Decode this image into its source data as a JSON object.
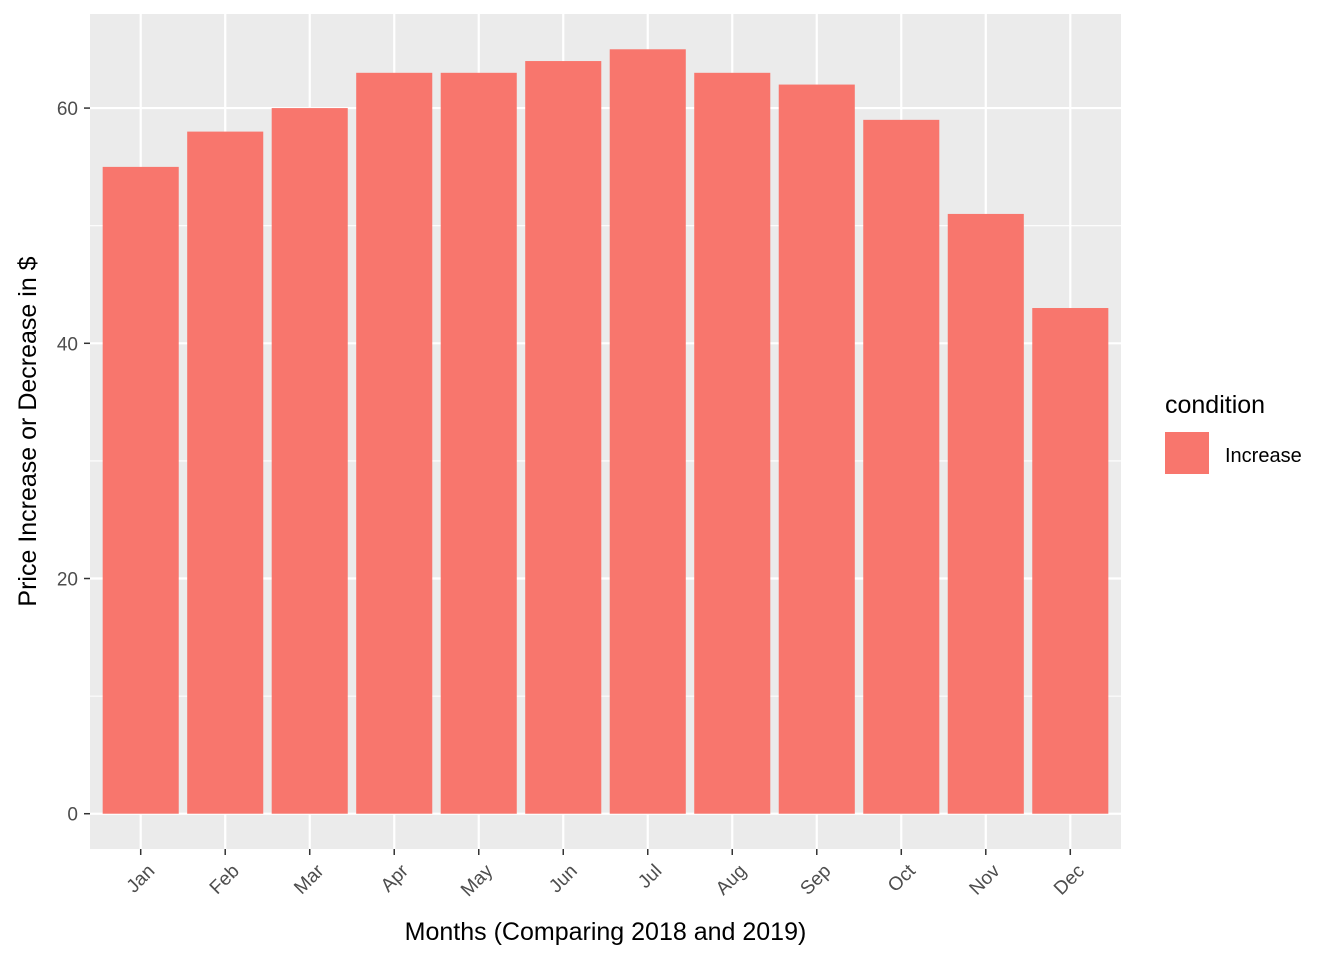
{
  "chart_data": {
    "type": "bar",
    "categories": [
      "Jan",
      "Feb",
      "Mar",
      "Apr",
      "May",
      "Jun",
      "Jul",
      "Aug",
      "Sep",
      "Oct",
      "Nov",
      "Dec"
    ],
    "series": [
      {
        "name": "Increase",
        "values": [
          55,
          58,
          60,
          63,
          63,
          64,
          65,
          63,
          62,
          59,
          51,
          43
        ],
        "color": "#F8766D"
      }
    ],
    "xlabel": "Months (Comparing 2018 and 2019)",
    "ylabel": "Price Increase or Decrease in $",
    "ylim": [
      -3,
      68
    ],
    "yticks": [
      0,
      20,
      40,
      60
    ],
    "grid": true,
    "panel_background": "#EBEBEB",
    "grid_color": "#FFFFFF",
    "legend": {
      "title": "condition",
      "placement": "right",
      "entries": [
        "Increase"
      ]
    }
  }
}
